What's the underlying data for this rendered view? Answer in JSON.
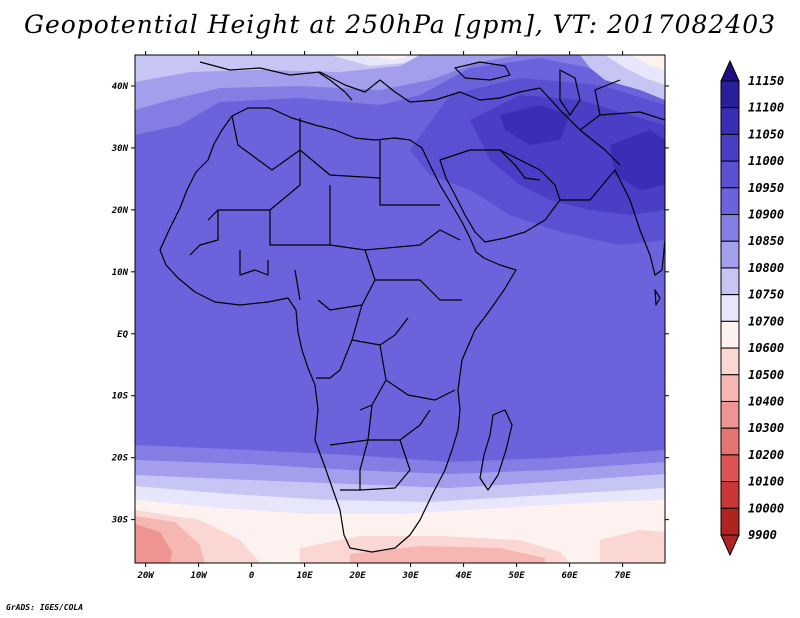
{
  "title": "Geopotential Height at 250hPa [gpm], VT: 2017082403",
  "footer": "GrADS: IGES/COLA",
  "lat_labels": [
    "40N",
    "30N",
    "20N",
    "10N",
    "EQ",
    "10S",
    "20S",
    "30S"
  ],
  "lon_labels": [
    "20W",
    "10W",
    "0",
    "10E",
    "20E",
    "30E",
    "40E",
    "50E",
    "60E",
    "70E"
  ],
  "colorbar": {
    "labels": [
      "11150",
      "11100",
      "11050",
      "11000",
      "10950",
      "10900",
      "10850",
      "10800",
      "10750",
      "10700",
      "10600",
      "10500",
      "10400",
      "10300",
      "10200",
      "10100",
      "10000",
      "9900"
    ],
    "colors": [
      "#1e0f82",
      "#2b1e9a",
      "#3a2eb4",
      "#4a3ec6",
      "#5a50d2",
      "#6b63dc",
      "#837de4",
      "#a39fec",
      "#c7c5f4",
      "#e7e6fb",
      "#fdf2f0",
      "#fbd7d4",
      "#f6b6b2",
      "#ee9592",
      "#e57572",
      "#da5553",
      "#c93736",
      "#b02420"
    ]
  },
  "map": {
    "extent": {
      "lon_min": -22,
      "lon_max": 78,
      "lat_min": -37,
      "lat_max": 45
    },
    "field_colors": {
      "v11050": "#3a2eb4",
      "v11000": "#4a3ec6",
      "v10950": "#5a50d2",
      "v10900": "#6b63dc",
      "v10850": "#837de4",
      "v10800": "#a39fec",
      "v10750": "#c7c5f4",
      "v10700": "#e7e6fb",
      "v10600": "#fdf2f0",
      "v10500": "#fbd7d4",
      "v10400": "#f6b6b2",
      "v10300": "#ee9592"
    }
  }
}
